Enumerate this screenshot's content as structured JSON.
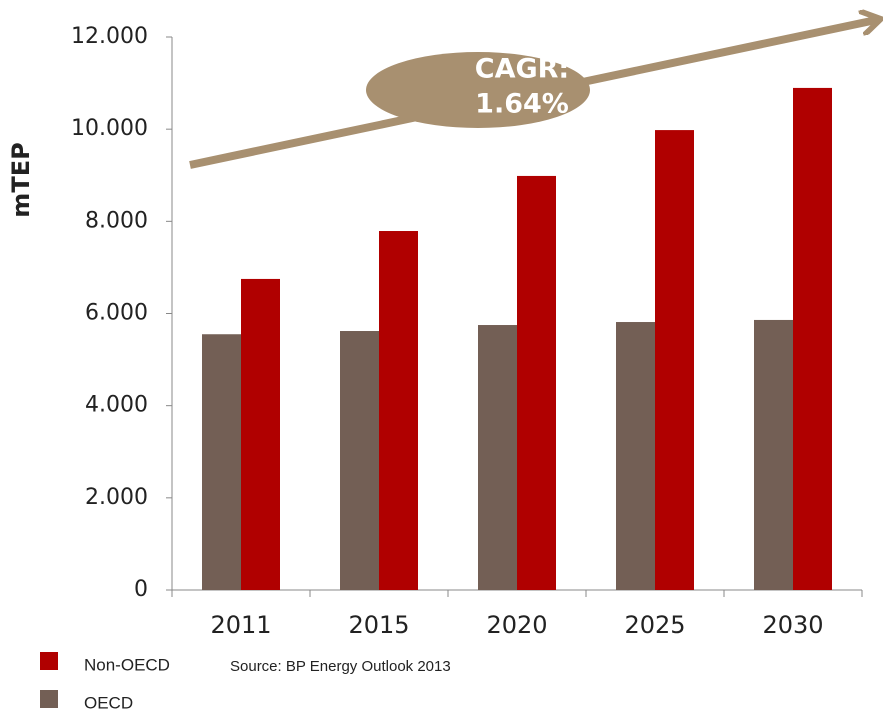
{
  "chart_data": {
    "type": "bar",
    "annotation": [
      "CAGR:",
      "1.64%"
    ],
    "y_label": "mTEP",
    "source": "Source: BP Energy Outlook 2013",
    "categories": [
      "2011",
      "2015",
      "2020",
      "2025",
      "2030"
    ],
    "series": [
      {
        "name": "OECD",
        "color": "#735f55",
        "values": [
          5550,
          5620,
          5750,
          5815,
          5860
        ]
      },
      {
        "name": "Non-OECD",
        "color": "#b00000",
        "values": [
          6750,
          7790,
          8985,
          9980,
          10895
        ]
      }
    ],
    "legend_order": [
      1,
      0
    ],
    "ylim": [
      0,
      12000
    ],
    "yticks": [
      0,
      {
        "value": 2000,
        "label": "2.000"
      },
      {
        "value": 4000,
        "label": "4.000"
      },
      {
        "value": 6000,
        "label": "6.000"
      },
      {
        "value": 8000,
        "label": "8.000"
      },
      {
        "value": 10000,
        "label": "10.000"
      },
      {
        "value": 12000,
        "label": "12.000"
      }
    ],
    "grid": false
  }
}
